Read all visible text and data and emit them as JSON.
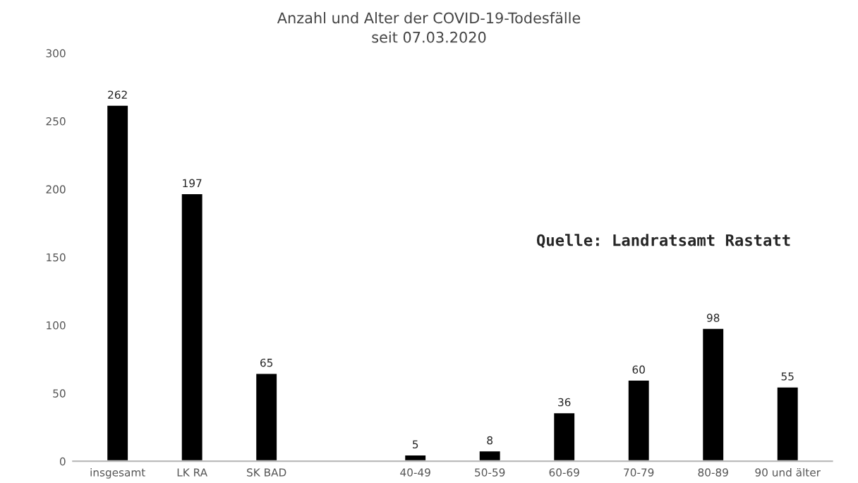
{
  "chart_data": {
    "type": "bar",
    "title": "Anzahl und Alter der COVID-19-Todesfälle",
    "subtitle": "seit 07.03.2020",
    "categories": [
      "insgesamt",
      "LK RA",
      "SK BAD",
      null,
      "40-49",
      "50-59",
      "60-69",
      "70-79",
      "80-89",
      "90 und älter"
    ],
    "values": [
      262,
      197,
      65,
      null,
      5,
      8,
      36,
      60,
      98,
      55
    ],
    "color": "#000000",
    "ylim": [
      0,
      300
    ],
    "yticks": [
      0,
      50,
      100,
      150,
      200,
      250,
      300
    ],
    "grid": false,
    "data_labels": true,
    "annotations": [
      "Quelle: Landratsamt Rastatt"
    ]
  }
}
